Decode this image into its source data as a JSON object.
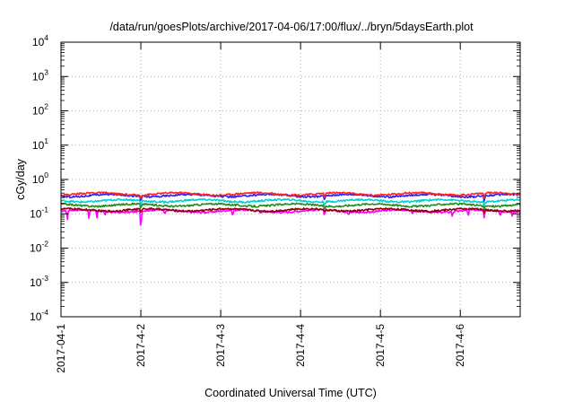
{
  "chart_data": {
    "type": "line",
    "title": "/data/run/goesPlots/archive/2017-04-06/17:00/flux/../bryn/5daysEarth.plot",
    "xlabel": "Coordinated Universal Time (UTC)",
    "ylabel": "cGy/day",
    "y_scale": "log",
    "ylim": [
      0.0001,
      10000
    ],
    "y_ticks": [
      {
        "value": 0.0001,
        "base": "10",
        "exp": "-4"
      },
      {
        "value": 0.001,
        "base": "10",
        "exp": "-3"
      },
      {
        "value": 0.01,
        "base": "10",
        "exp": "-2"
      },
      {
        "value": 0.1,
        "base": "10",
        "exp": "-1"
      },
      {
        "value": 1,
        "base": "10",
        "exp": "0"
      },
      {
        "value": 10,
        "base": "10",
        "exp": "1"
      },
      {
        "value": 100,
        "base": "10",
        "exp": "2"
      },
      {
        "value": 1000,
        "base": "10",
        "exp": "3"
      },
      {
        "value": 10000,
        "base": "10",
        "exp": "4"
      }
    ],
    "xlim": [
      0,
      5.75
    ],
    "x_ticks": [
      {
        "value": 0,
        "label": "2017-04-1"
      },
      {
        "value": 1,
        "label": "2017-4-2"
      },
      {
        "value": 2,
        "label": "2017-4-3"
      },
      {
        "value": 3,
        "label": "2017-4-4"
      },
      {
        "value": 4,
        "label": "2017-4-5"
      },
      {
        "value": 5,
        "label": "2017-4-6"
      }
    ],
    "grid": true,
    "legend": "none",
    "series": [
      {
        "color": "#ff00ff",
        "base": 0.12,
        "dips": [
          [
            0.08,
            0.06
          ],
          [
            0.35,
            0.07
          ],
          [
            0.45,
            0.07
          ],
          [
            0.55,
            0.08
          ],
          [
            1.0,
            0.03
          ],
          [
            1.3,
            0.09
          ],
          [
            2.15,
            0.08
          ],
          [
            2.5,
            0.1
          ],
          [
            3.3,
            0.08
          ],
          [
            3.6,
            0.09
          ],
          [
            4.4,
            0.09
          ],
          [
            4.9,
            0.08
          ],
          [
            5.1,
            0.08
          ],
          [
            5.3,
            0.07
          ],
          [
            5.5,
            0.08
          ],
          [
            5.65,
            0.08
          ]
        ]
      },
      {
        "color": "#8b0000",
        "base": 0.13,
        "dips": [
          [
            1.0,
            0.1
          ],
          [
            3.3,
            0.11
          ],
          [
            5.3,
            0.1
          ]
        ]
      },
      {
        "color": "#228b22",
        "base": 0.18,
        "dips": [
          [
            1.0,
            0.13
          ],
          [
            3.3,
            0.13
          ],
          [
            5.3,
            0.13
          ]
        ]
      },
      {
        "color": "#00ced1",
        "base": 0.24,
        "dips": [
          [
            1.0,
            0.16
          ],
          [
            3.3,
            0.17
          ],
          [
            5.3,
            0.16
          ]
        ]
      },
      {
        "color": "#2222ff",
        "base": 0.34,
        "dips": [
          [
            1.0,
            0.22
          ],
          [
            3.3,
            0.24
          ],
          [
            5.3,
            0.22
          ]
        ]
      },
      {
        "color": "#ff2020",
        "base": 0.38,
        "dips": [
          [
            1.0,
            0.26
          ],
          [
            3.3,
            0.27
          ],
          [
            5.3,
            0.26
          ]
        ]
      }
    ]
  }
}
